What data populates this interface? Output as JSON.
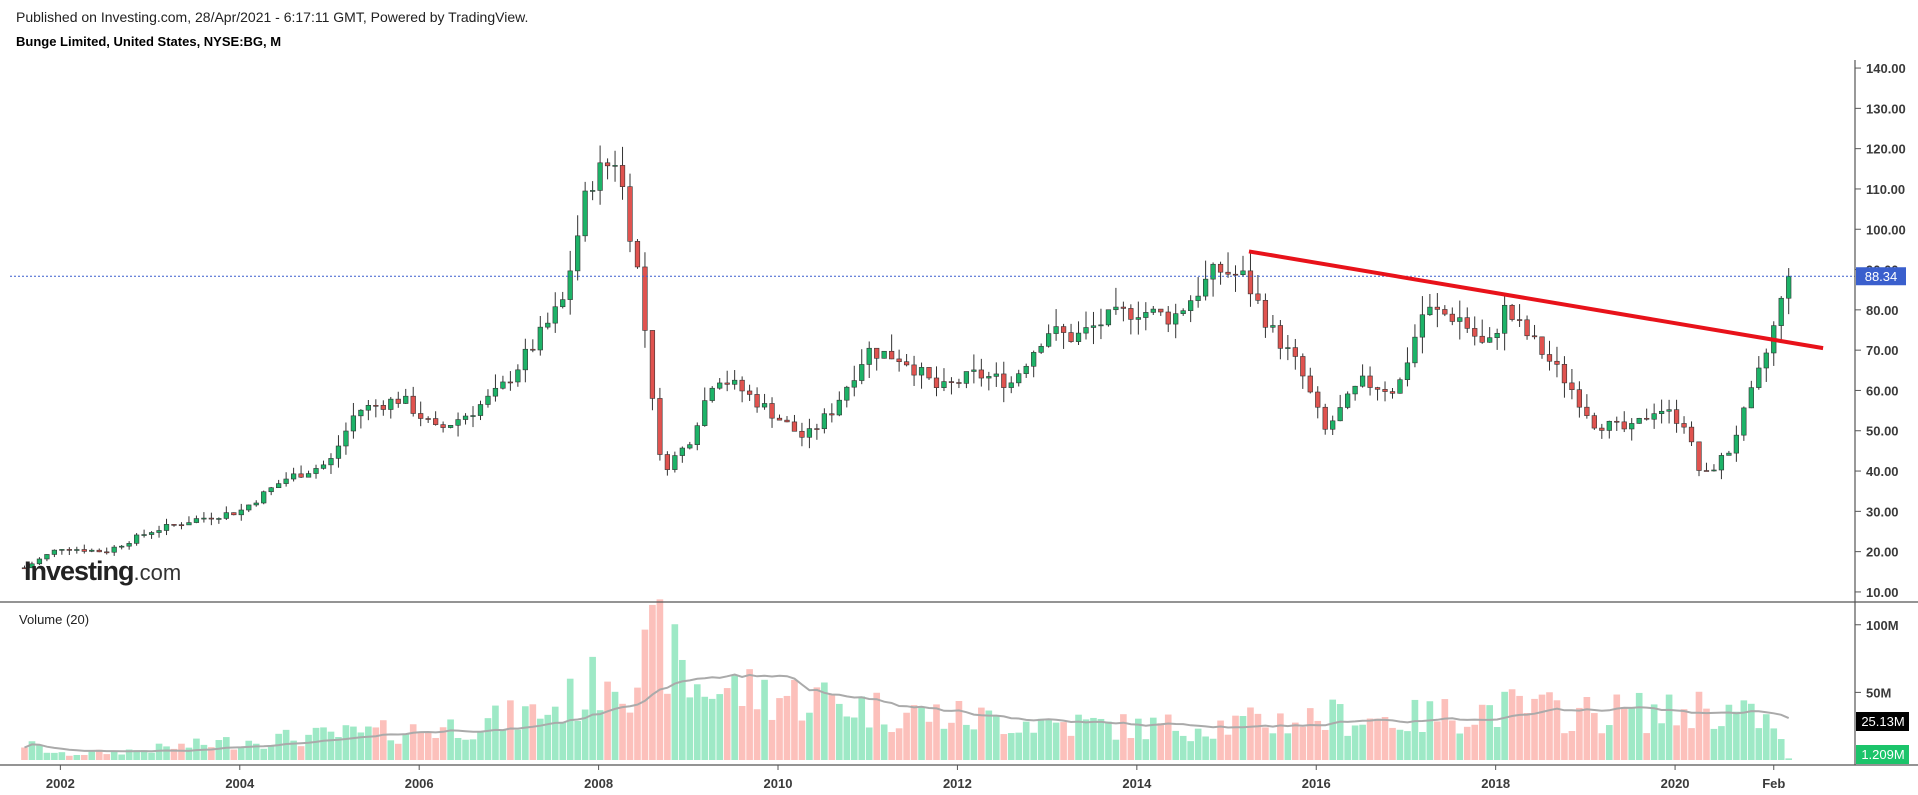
{
  "header": {
    "published": "Published on Investing.com, 28/Apr/2021 - 6:17:11 GMT, Powered by TradingView.",
    "symbol": "Bunge Limited, United States, NYSE:BG, M"
  },
  "logo": {
    "main": "Investing",
    "suffix": ".com"
  },
  "volume_panel": {
    "label": "Volume (20)"
  },
  "colors": {
    "up": "#1db368",
    "down": "#e0534f",
    "trendline": "#e8121a",
    "current_price_line": "#3a5fcd",
    "volume_up": "#9ee9c6",
    "volume_down": "#fcc0bb",
    "volume_ma": "#aaaaaa",
    "badge_ma": "#000000",
    "badge_vol": "#1bc46a"
  },
  "chart_data": [
    {
      "type": "candlestick",
      "title": "Bunge Limited, United States, NYSE:BG, M",
      "interval": "monthly",
      "x_ticks": [
        "2002",
        "2004",
        "2006",
        "2008",
        "2010",
        "2012",
        "2014",
        "2016",
        "2018",
        "2020",
        "Feb"
      ],
      "y_ticks": [
        "10.00",
        "20.00",
        "30.00",
        "40.00",
        "50.00",
        "60.00",
        "70.00",
        "80.00",
        "90.00",
        "100.00",
        "110.00",
        "120.00",
        "130.00",
        "140.00"
      ],
      "ylim": [
        8,
        142
      ],
      "current_price": 88.34,
      "current_price_label": "88.34",
      "anchors": [
        [
          2001.6,
          16
        ],
        [
          2002.0,
          21
        ],
        [
          2002.5,
          20
        ],
        [
          2003.0,
          25
        ],
        [
          2003.5,
          28
        ],
        [
          2004.0,
          30
        ],
        [
          2004.5,
          38
        ],
        [
          2005.0,
          42
        ],
        [
          2005.3,
          55
        ],
        [
          2005.8,
          58
        ],
        [
          2006.2,
          50
        ],
        [
          2006.6,
          55
        ],
        [
          2006.9,
          60
        ],
        [
          2007.3,
          72
        ],
        [
          2007.6,
          82
        ],
        [
          2007.9,
          112
        ],
        [
          2008.2,
          118
        ],
        [
          2008.45,
          88
        ],
        [
          2008.7,
          40
        ],
        [
          2009.0,
          47
        ],
        [
          2009.3,
          64
        ],
        [
          2009.6,
          60
        ],
        [
          2009.9,
          55
        ],
        [
          2010.3,
          48
        ],
        [
          2010.6,
          55
        ],
        [
          2011.0,
          70
        ],
        [
          2011.4,
          68
        ],
        [
          2011.8,
          60
        ],
        [
          2012.2,
          64
        ],
        [
          2012.6,
          62
        ],
        [
          2013.0,
          75
        ],
        [
          2013.3,
          73
        ],
        [
          2013.7,
          78
        ],
        [
          2014.0,
          80
        ],
        [
          2014.4,
          78
        ],
        [
          2014.9,
          90
        ],
        [
          2015.2,
          88
        ],
        [
          2015.5,
          75
        ],
        [
          2015.8,
          66
        ],
        [
          2016.1,
          50
        ],
        [
          2016.5,
          62
        ],
        [
          2016.9,
          60
        ],
        [
          2017.2,
          80
        ],
        [
          2017.6,
          78
        ],
        [
          2017.9,
          70
        ],
        [
          2018.1,
          80
        ],
        [
          2018.5,
          70
        ],
        [
          2018.8,
          62
        ],
        [
          2019.1,
          52
        ],
        [
          2019.5,
          50
        ],
        [
          2019.8,
          56
        ],
        [
          2020.1,
          52
        ],
        [
          2020.3,
          38
        ],
        [
          2020.6,
          45
        ],
        [
          2020.8,
          56
        ],
        [
          2021.0,
          68
        ],
        [
          2021.2,
          83
        ],
        [
          2021.3,
          88.34
        ]
      ],
      "trendline": {
        "from": [
          2015.25,
          94.5
        ],
        "to": [
          2021.65,
          70.5
        ]
      }
    },
    {
      "type": "bar",
      "title": "Volume (20)",
      "y_ticks": [
        "100M",
        "50M"
      ],
      "ylim": [
        0,
        105
      ],
      "volume_ma_label": "25.13M",
      "last_volume_label": "1.209M",
      "volume_anchors": [
        [
          2001.6,
          12
        ],
        [
          2002.0,
          4
        ],
        [
          2002.6,
          6
        ],
        [
          2003.2,
          9
        ],
        [
          2004.0,
          14
        ],
        [
          2005.0,
          18
        ],
        [
          2006.0,
          22
        ],
        [
          2006.8,
          28
        ],
        [
          2007.5,
          38
        ],
        [
          2007.9,
          50
        ],
        [
          2008.1,
          70
        ],
        [
          2008.4,
          62
        ],
        [
          2008.7,
          88
        ],
        [
          2009.0,
          55
        ],
        [
          2009.5,
          52
        ],
        [
          2010.0,
          48
        ],
        [
          2010.6,
          45
        ],
        [
          2011.0,
          38
        ],
        [
          2011.6,
          34
        ],
        [
          2012.3,
          30
        ],
        [
          2013.0,
          28
        ],
        [
          2014.0,
          24
        ],
        [
          2015.0,
          26
        ],
        [
          2015.8,
          30
        ],
        [
          2016.2,
          32
        ],
        [
          2017.0,
          30
        ],
        [
          2017.7,
          36
        ],
        [
          2018.2,
          38
        ],
        [
          2019.0,
          34
        ],
        [
          2019.5,
          36
        ],
        [
          2020.0,
          34
        ],
        [
          2020.3,
          40
        ],
        [
          2020.8,
          32
        ],
        [
          2021.0,
          30
        ],
        [
          2021.3,
          1.209
        ]
      ]
    }
  ]
}
